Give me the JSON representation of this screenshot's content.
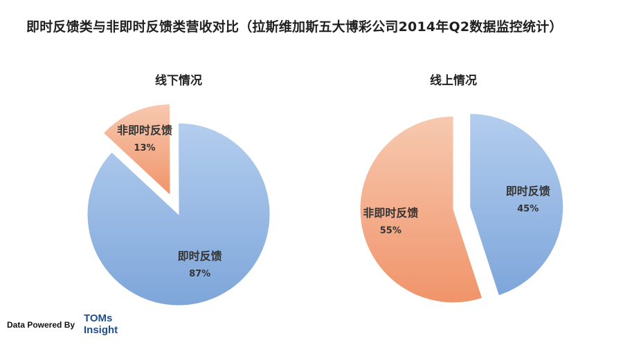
{
  "title": "即时反馈类与非即时反馈类营收对比（拉斯维加斯五大博彩公司2014年Q2数据监控统计）",
  "chart_data": [
    {
      "type": "pie",
      "title": "线下情况",
      "slices": [
        {
          "label": "非即时反馈",
          "value": 13,
          "display": "13%",
          "exploded": true,
          "color": "#f0a07a"
        },
        {
          "label": "即时反馈",
          "value": 87,
          "display": "87%",
          "exploded": false,
          "color": "#8fb4e3"
        }
      ]
    },
    {
      "type": "pie",
      "title": "线上情况",
      "slices": [
        {
          "label": "即时反馈",
          "value": 45,
          "display": "45%",
          "exploded": true,
          "color": "#8fb4e3"
        },
        {
          "label": "非即时反馈",
          "value": 55,
          "display": "55%",
          "exploded": false,
          "color": "#f0a07a"
        }
      ]
    }
  ],
  "footer": {
    "powered_by": "Data Powered By",
    "brand_line1": "TOMs",
    "brand_line2": "Insight"
  }
}
